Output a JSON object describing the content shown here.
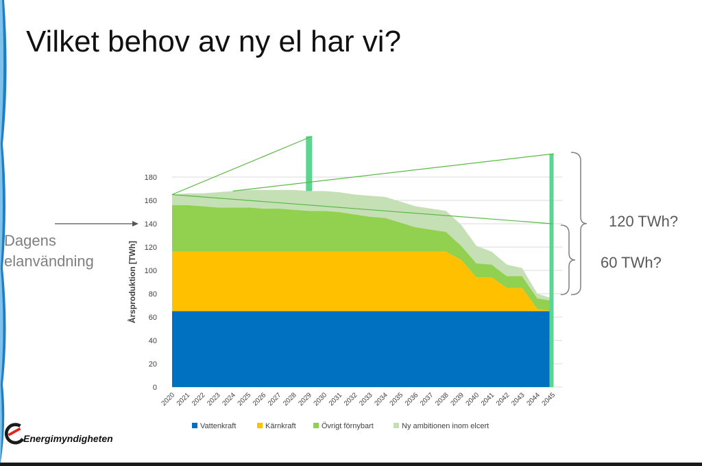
{
  "slide": {
    "title": "Vilket behov av ny el har vi?",
    "side_label_line1": "Dagens",
    "side_label_line2": "elanvändning",
    "annotation_120": "120 TWh?",
    "annotation_60": "60 TWh?",
    "logo_text": "Energimyndigheten"
  },
  "chart_data": {
    "type": "area",
    "title": "",
    "xlabel": "",
    "ylabel": "Årsproduktion [TWh]",
    "ylim": [
      0,
      180
    ],
    "yticks": [
      0,
      20,
      40,
      60,
      80,
      100,
      120,
      140,
      160,
      180
    ],
    "grid": true,
    "stacked": true,
    "legend_position": "bottom",
    "x": [
      "2020",
      "2021",
      "2022",
      "2023",
      "2024",
      "2025",
      "2026",
      "2027",
      "2028",
      "2029",
      "2030",
      "2031",
      "2032",
      "2033",
      "2034",
      "2035",
      "2036",
      "2037",
      "2038",
      "2039",
      "2040",
      "2041",
      "2042",
      "2043",
      "2044",
      "2045"
    ],
    "series": [
      {
        "name": "Vattenkraft",
        "color": "#0070c0",
        "values": [
          65,
          65,
          65,
          65,
          65,
          65,
          65,
          65,
          65,
          65,
          65,
          65,
          65,
          65,
          65,
          65,
          65,
          65,
          65,
          65,
          65,
          65,
          65,
          65,
          65,
          65
        ]
      },
      {
        "name": "Kärnkraft",
        "color": "#ffc000",
        "values": [
          51,
          51,
          51,
          51,
          51,
          51,
          51,
          51,
          51,
          51,
          51,
          51,
          51,
          51,
          51,
          51,
          51,
          51,
          51,
          44,
          29,
          29,
          20,
          20,
          2,
          0
        ]
      },
      {
        "name": "Övrigt förnybart",
        "color": "#92d050",
        "values": [
          40,
          40,
          39,
          38,
          38,
          38,
          37,
          37,
          36,
          35,
          35,
          34,
          32,
          30,
          29,
          25,
          21,
          19,
          17,
          12,
          12,
          11,
          10,
          10,
          9,
          9
        ]
      },
      {
        "name": "Ny ambitionen inom elcert",
        "color": "#c5e0b4",
        "values": [
          9,
          10,
          11,
          13,
          14,
          15,
          16,
          16,
          17,
          17,
          17,
          17,
          17,
          18,
          18,
          18,
          18,
          18,
          18,
          18,
          15,
          11,
          10,
          7,
          4,
          2
        ]
      }
    ],
    "annotations": {
      "arrow_level": 140,
      "bar_2029_top": 215,
      "bar_2045_top": 200,
      "brace_big": [
        78,
        200
      ],
      "brace_small": [
        78,
        140
      ]
    }
  }
}
